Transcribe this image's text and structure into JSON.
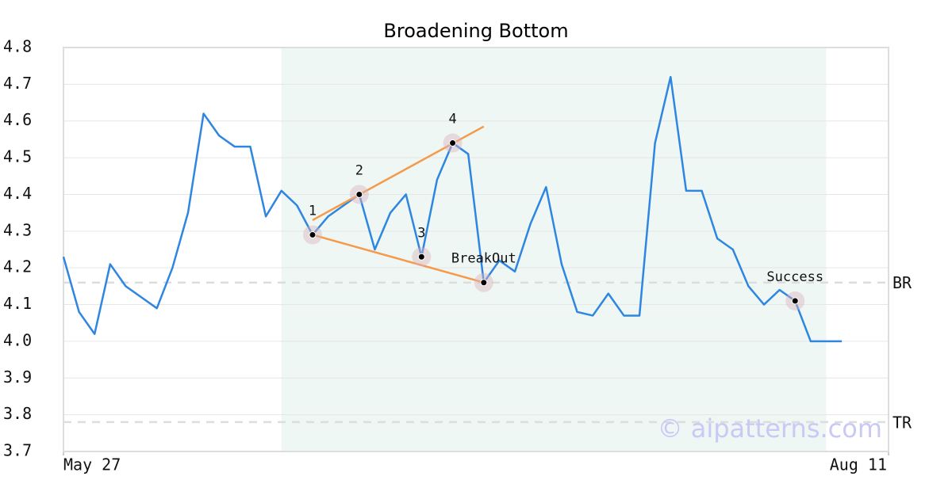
{
  "chart_data": {
    "type": "line",
    "title": "Broadening Bottom",
    "x": [
      0,
      1,
      2,
      3,
      4,
      5,
      6,
      7,
      8,
      9,
      10,
      11,
      12,
      13,
      14,
      15,
      16,
      17,
      18,
      19,
      20,
      21,
      22,
      23,
      24,
      25,
      26,
      27,
      28,
      29,
      30,
      31,
      32,
      33,
      34,
      35,
      36,
      37,
      38,
      39,
      40,
      41,
      42,
      43,
      44,
      45,
      46,
      47,
      48,
      49,
      50
    ],
    "series": [
      {
        "color": "#2f86e0",
        "values": [
          4.23,
          4.08,
          4.02,
          4.21,
          4.15,
          4.12,
          4.09,
          4.2,
          4.35,
          4.62,
          4.56,
          4.53,
          4.53,
          4.34,
          4.41,
          4.37,
          4.29,
          4.34,
          4.37,
          4.4,
          4.25,
          4.35,
          4.4,
          4.23,
          4.44,
          4.54,
          4.51,
          4.16,
          4.22,
          4.19,
          4.32,
          4.42,
          4.21,
          4.08,
          4.07,
          4.13,
          4.07,
          4.07,
          4.54,
          4.72,
          4.41,
          4.41,
          4.28,
          4.25,
          4.15,
          4.1,
          4.14,
          4.11,
          4.0,
          4.0,
          4.0
        ]
      }
    ],
    "xlim": [
      0,
      53
    ],
    "xticks": [
      {
        "value": 0,
        "label": "May 27"
      },
      {
        "value": 53,
        "label": "Aug 11"
      }
    ],
    "ylim": [
      3.7,
      4.8
    ],
    "yticks": [
      3.7,
      3.8,
      3.9,
      {
        "value": 4.0,
        "label": "4.0"
      },
      4.1,
      4.2,
      4.3,
      4.4,
      4.5,
      4.6,
      4.7,
      4.8
    ],
    "grid": true,
    "highlight": {
      "x": [
        14,
        49
      ],
      "color": "#eef7f3"
    },
    "trendlines": [
      {
        "color": "#f59a4a",
        "x": [
          16,
          27
        ],
        "y": [
          4.33,
          4.585
        ]
      },
      {
        "color": "#f59a4a",
        "x": [
          16,
          27
        ],
        "y": [
          4.29,
          4.16
        ]
      }
    ],
    "annotations": [
      {
        "label": "1",
        "x": 16,
        "y": 4.29
      },
      {
        "label": "2",
        "x": 19,
        "y": 4.4
      },
      {
        "label": "3",
        "x": 23,
        "y": 4.23
      },
      {
        "label": "4",
        "x": 25,
        "y": 4.54
      },
      {
        "label": "BreakOut",
        "x": 27,
        "y": 4.16
      },
      {
        "label": "Success",
        "x": 47,
        "y": 4.11
      }
    ],
    "reference_lines": [
      {
        "label": "BR",
        "value": 4.16
      },
      {
        "label": "TR",
        "value": 3.78
      }
    ],
    "watermark": "© aipatterns.com"
  }
}
